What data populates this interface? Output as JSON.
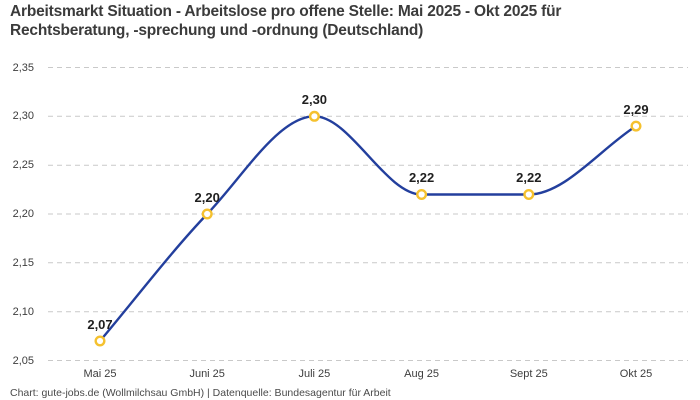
{
  "chart_data": {
    "type": "line",
    "title": "Arbeitsmarkt Situation - Arbeitslose pro offene Stelle: Mai 2025 - Okt 2025 für Rechtsberatung, -sprechung und -ordnung (Deutschland)",
    "title_lines": [
      "Arbeitsmarkt Situation - Arbeitslose pro offene Stelle: Mai 2025 - Okt 2025 für",
      "Rechtsberatung, -sprechung und -ordnung (Deutschland)"
    ],
    "categories": [
      "Mai 25",
      "Juni 25",
      "Juli 25",
      "Aug 25",
      "Sept 25",
      "Okt 25"
    ],
    "values": [
      2.07,
      2.2,
      2.3,
      2.22,
      2.22,
      2.29
    ],
    "value_labels": [
      "2,07",
      "2,20",
      "2,30",
      "2,22",
      "2,22",
      "2,29"
    ],
    "y_tick_values": [
      2.05,
      2.1,
      2.15,
      2.2,
      2.25,
      2.3,
      2.35
    ],
    "y_tick_labels": [
      "2,05",
      "2,10",
      "2,15",
      "2,20",
      "2,25",
      "2,30",
      "2,35"
    ],
    "ylim": [
      2.05,
      2.35
    ],
    "xlabel": "",
    "ylabel": "",
    "grid": "horizontal-dashed",
    "legend": "none",
    "line_style": "smooth-monotone",
    "colors": {
      "line": "#233f9d",
      "marker_ring": "#f5c12e",
      "marker_fill": "#ffffff",
      "grid": "#c9c9c9",
      "title_text": "#3b3b3b",
      "value_label_text": "#1f1f1f",
      "tick_text": "#3d3d3d",
      "footer_text": "#4a4a4a",
      "background": "#ffffff"
    }
  },
  "footer": {
    "credit": "Chart: gute-jobs.de (Wollmilchsau GmbH) | Datenquelle: Bundesagentur für Arbeit"
  }
}
